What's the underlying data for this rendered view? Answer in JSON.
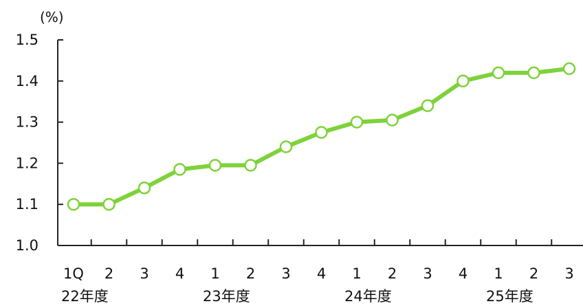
{
  "chart_data": {
    "type": "line",
    "unit": "(%)",
    "ylim": [
      1.0,
      1.5
    ],
    "yticks": [
      "1.0",
      "1.1",
      "1.2",
      "1.3",
      "1.4",
      "1.5"
    ],
    "categories": [
      "1Q",
      "2",
      "3",
      "4",
      "1",
      "2",
      "3",
      "4",
      "1",
      "2",
      "3",
      "4",
      "1",
      "2",
      "3"
    ],
    "year_groups": [
      {
        "label": "22年度",
        "start": 0
      },
      {
        "label": "23年度",
        "start": 4
      },
      {
        "label": "24年度",
        "start": 8
      },
      {
        "label": "25年度",
        "start": 12
      }
    ],
    "series": [
      {
        "values": [
          1.1,
          1.1,
          1.14,
          1.185,
          1.195,
          1.195,
          1.24,
          1.275,
          1.3,
          1.305,
          1.34,
          1.4,
          1.42,
          1.42,
          1.43
        ]
      }
    ],
    "grid": false,
    "colors": {
      "line": "#7ed23a",
      "marker_fill": "#ffffff",
      "axis": "#222222"
    }
  }
}
